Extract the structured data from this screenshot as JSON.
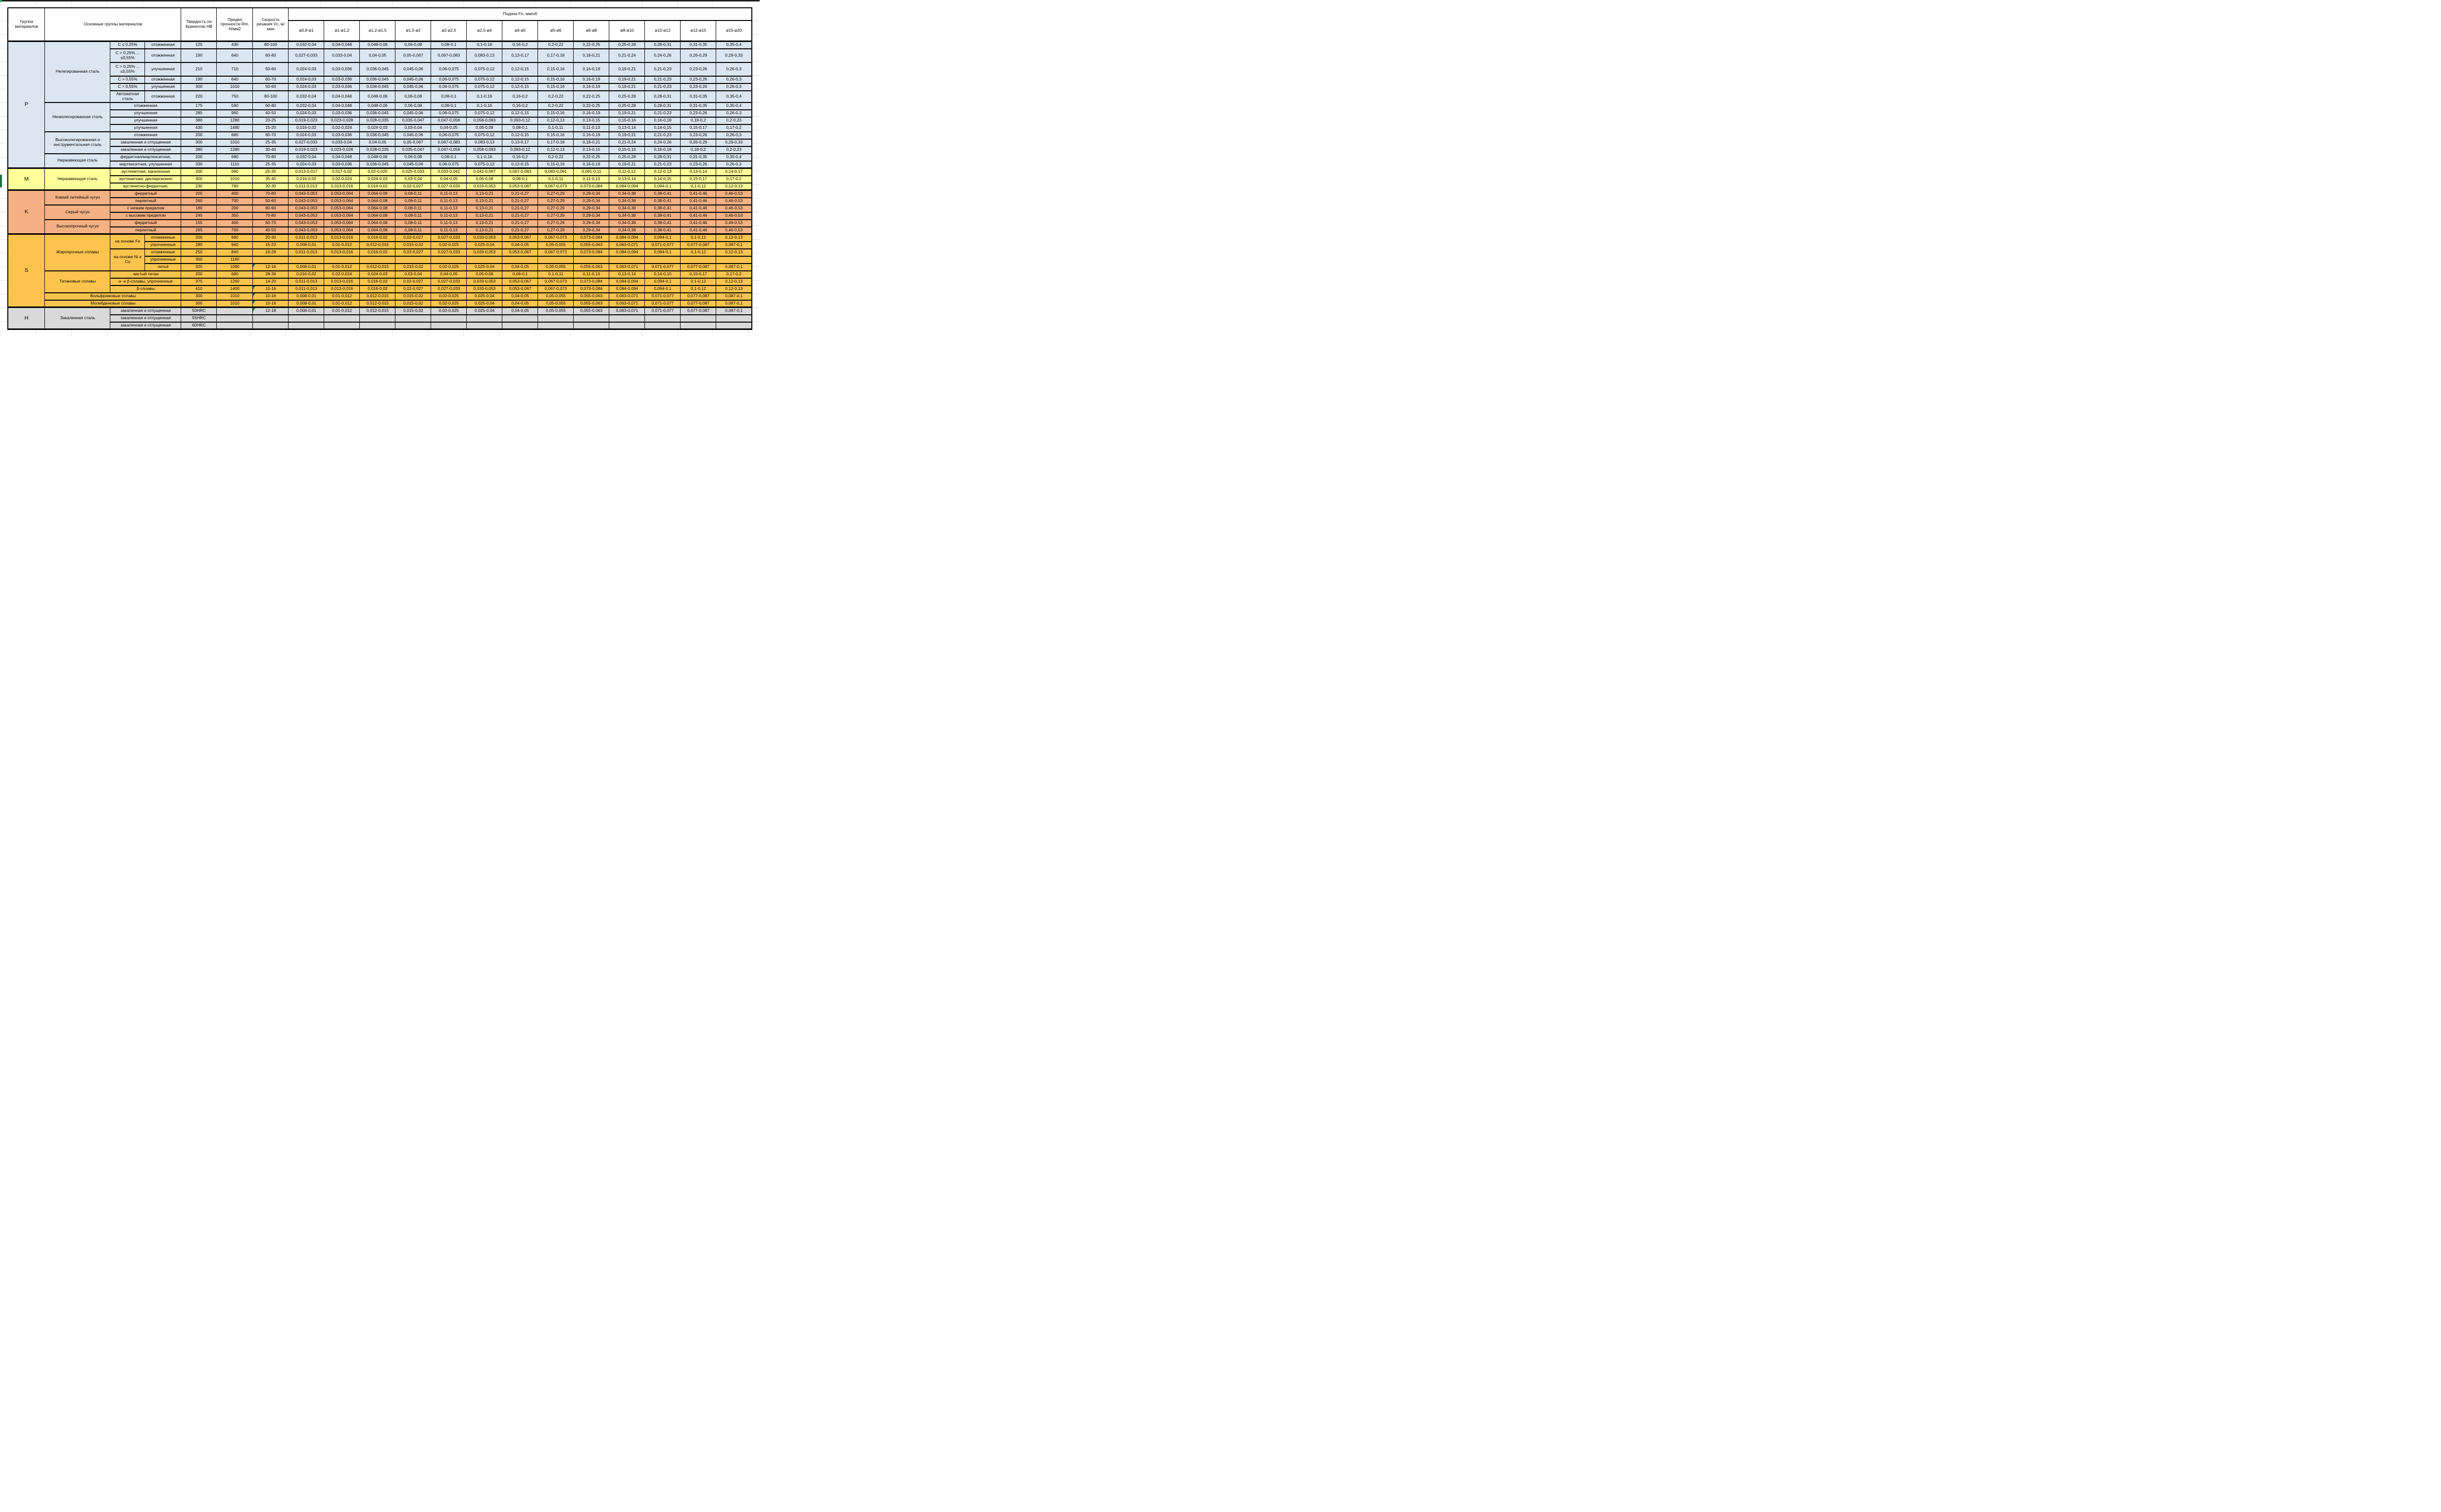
{
  "header": {
    "col_group": "Группа материалов",
    "col_main": "Основные группы материалов",
    "col_hardness": "Твердость по Бринеллю HB",
    "col_strength": "Предел прочности Rm, Н/мм2",
    "col_speed": "Скорость резания Vc, м/мин",
    "feed_title": "Подача Fn, мм/об",
    "feed_columns": [
      "ø0,8-ø1",
      "ø1-ø1,2",
      "ø1,2-ø1,5",
      "ø1,5-ø2",
      "ø2-ø2,5",
      "ø2,5-ø4",
      "ø4-ø5",
      "ø5-ø6",
      "ø6-ø8",
      "ø8-ø10",
      "ø10-ø12",
      "ø12-ø15",
      "ø15-ø20"
    ]
  },
  "feed_patterns": {
    "PA": [
      "0,032-0,04",
      "0,04-0,048",
      "0,048-0,06",
      "0,06-0,08",
      "0,08-0,1",
      "0,1-0,16",
      "0,16-0,2",
      "0,2-0,22",
      "0,22-0,25",
      "0,25-0,28",
      "0,28-0,31",
      "0,31-0,35",
      "0,35-0,4"
    ],
    "PB": [
      "0,027-0,033",
      "0,033-0,04",
      "0,04-0,05",
      "0,05-0,067",
      "0,067-0,083",
      "0,083-0,13",
      "0,13-0,17",
      "0,17-0,18",
      "0,18-0,21",
      "0,21-0,24",
      "0,24-0,26",
      "0,26-0,29",
      "0,29-0,33"
    ],
    "PC": [
      "0,024-0,03",
      "0,03-0,036",
      "0,036-0,045",
      "0,045-0,06",
      "0,06-0,075",
      "0,075-0,12",
      "0,12-0,15",
      "0,15-0,16",
      "0,16-0,19",
      "0,19-0,21",
      "0,21-0,23",
      "0,23-0,26",
      "0,26-0,3"
    ],
    "PD": [
      "0,019-0,023",
      "0,023-0,028",
      "0,028-0,035",
      "0,035-0,047",
      "0,047-0,058",
      "0,058-0,093",
      "0,093-0,12",
      "0,12-0,13",
      "0,13-0,15",
      "0,15-0,16",
      "0,16-0,18",
      "0,18-0,2",
      "0,2-0,23"
    ],
    "PE": [
      "0,016-0,02",
      "0,02-0,024",
      "0,024-0,03",
      "0,03-0,04",
      "0,04-0,05",
      "0,05-0,08",
      "0,08-0,1",
      "0,1-0,11",
      "0,11-0,13",
      "0,13-0,14",
      "0,14-0,15",
      "0,15-0,17",
      "0,17-0,2"
    ],
    "MA": [
      "0,013-0,017",
      "0,017-0,02",
      "0,02-0,025",
      "0,025-0,033",
      "0,033-0,042",
      "0,042-0,067",
      "0,067-0,083",
      "0,083-0,091",
      "0,091-0,11",
      "0,11-0,12",
      "0,12-0,13",
      "0,13-0,14",
      "0,14-0,17"
    ],
    "SA": [
      "0,011-0,013",
      "0,013-0,016",
      "0,016-0,02",
      "0,02-0,027",
      "0,027-0,033",
      "0,033-0,053",
      "0,053-0,067",
      "0,067-0,073",
      "0,073-0,084",
      "0,084-0,094",
      "0,094-0,1",
      "0,1-0,12",
      "0,12-0,13"
    ],
    "SB": [
      "0,008-0,01",
      "0,01-0,012",
      "0,012-0,015",
      "0,015-0,02",
      "0,02-0,025",
      "0,025-0,04",
      "0,04-0,05",
      "0,05-0,055",
      "0,055-0,063",
      "0,063-0,071",
      "0,071-0,077",
      "0,077-0,087",
      "0,087-0,1"
    ],
    "K": [
      "0,043-0,053",
      "0,053-0,064",
      "0,064-0,08",
      "0,08-0,11",
      "0,11-0,13",
      "0,13-0,21",
      "0,21-0,27",
      "0,27-0,29",
      "0,29-0,34",
      "0,34-0,38",
      "0,38-0,41",
      "0,41-0,46",
      "0,46-0,53"
    ]
  },
  "groups": [
    {
      "label": "P",
      "color": "#dce6f1",
      "rows": [
        {
          "main": {
            "t": "Нелегированная сталь",
            "rs": 6
          },
          "sub1": {
            "t": "C ≤ 0,25%"
          },
          "sub2": {
            "t": "отожженная"
          },
          "hb": "125",
          "rm": "430",
          "vc": "80-100",
          "p": "PA",
          "h": 1
        },
        {
          "sub1": {
            "t": "C > 0,25% ... ≤0,55%"
          },
          "sub2": {
            "t": "отожженная"
          },
          "hb": "190",
          "rm": "640",
          "vc": "60-80",
          "p": "PB",
          "h": 2
        },
        {
          "sub1": {
            "t": "C > 0,25% ... ≤0,55%"
          },
          "sub2": {
            "t": "улучшенная"
          },
          "hb": "210",
          "rm": "710",
          "vc": "50-60",
          "p": "PC",
          "h": 2
        },
        {
          "sub1": {
            "t": "C > 0,55%"
          },
          "sub2": {
            "t": "отожженная"
          },
          "hb": "190",
          "rm": "640",
          "vc": "60-70",
          "p": "PC",
          "h": 1
        },
        {
          "sub1": {
            "t": "C > 0,55%"
          },
          "sub2": {
            "t": "улучшенная"
          },
          "hb": "300",
          "rm": "1010",
          "vc": "50-60",
          "p": "PC",
          "h": 1
        },
        {
          "sub1": {
            "t": "Автоматная сталь"
          },
          "sub2": {
            "t": "отожженная"
          },
          "hb": "220",
          "rm": "750",
          "vc": "80-100",
          "p": "PA",
          "h": 1.5
        },
        {
          "main": {
            "t": "Низколегированная сталь",
            "rs": 4
          },
          "wide": {
            "t": "отожженная"
          },
          "hb": "175",
          "rm": "590",
          "vc": "60-80",
          "p": "PA",
          "h": 1
        },
        {
          "wide": {
            "t": "улучшенная"
          },
          "hb": "285",
          "rm": "960",
          "vc": "40-50",
          "p": "PC",
          "h": 1
        },
        {
          "wide": {
            "t": "улучшенная"
          },
          "hb": "380",
          "rm": "1280",
          "vc": "20-25",
          "p": "PD",
          "h": 1
        },
        {
          "wide": {
            "t": "улучшенная"
          },
          "hb": "430",
          "rm": "1480",
          "vc": "15-20",
          "p": "PE",
          "h": 1
        },
        {
          "main": {
            "t": "Высоколегированная и инструментальная сталь",
            "rs": 3
          },
          "wide": {
            "t": "отожженная"
          },
          "hb": "200",
          "rm": "680",
          "vc": "60-70",
          "p": "PC",
          "h": 1
        },
        {
          "wide": {
            "t": "закаленная и отпущенная"
          },
          "hb": "300",
          "rm": "1010",
          "vc": "25-35",
          "p": "PB",
          "h": 1
        },
        {
          "wide": {
            "t": "закаленная и отпущенная"
          },
          "hb": "380",
          "rm": "1280",
          "vc": "30-40",
          "p": "PD",
          "h": 1
        },
        {
          "main": {
            "t": "Нержавеющая сталь",
            "rs": 2
          },
          "wide": {
            "t": "ферритная/мартенситная,"
          },
          "hb": "200",
          "rm": "680",
          "vc": "70-80",
          "p": "PA",
          "h": 1
        },
        {
          "wide": {
            "t": "мартенситная, улучшенная"
          },
          "hb": "330",
          "rm": "1110",
          "vc": "25-35",
          "p": "PC",
          "h": 1
        }
      ]
    },
    {
      "label": "M",
      "color": "#ffff99",
      "rows": [
        {
          "main": {
            "t": "Нержавеющая сталь",
            "rs": 3
          },
          "wide": {
            "t": "аустенитная, закаленная"
          },
          "hb": "200",
          "rm": "680",
          "vc": "25-35",
          "p": "MA",
          "h": 1
        },
        {
          "wide": {
            "t": "аустенитная, дисперсионно"
          },
          "hb": "300",
          "rm": "1010",
          "vc": "35-45",
          "p": "PE",
          "h": 1
        },
        {
          "wide": {
            "t": "аустенитно-ферритная,"
          },
          "hb": "230",
          "rm": "780",
          "vc": "20-30",
          "p": "SA",
          "h": 1
        }
      ]
    },
    {
      "label": "K",
      "color": "#f5b183",
      "rows": [
        {
          "main": {
            "t": "Ковкий литейный чугун",
            "rs": 2
          },
          "wide": {
            "t": "ферритный"
          },
          "hb": "200",
          "rm": "400",
          "vc": "70-80",
          "p": "K",
          "h": 1
        },
        {
          "wide": {
            "t": "перлитный"
          },
          "hb": "260",
          "rm": "700",
          "vc": "50-60",
          "p": "K",
          "h": 1
        },
        {
          "main": {
            "t": "Серый чугун",
            "rs": 2
          },
          "wide": {
            "t": "с низким пределом"
          },
          "hb": "180",
          "rm": "200",
          "vc": "80-90",
          "p": "K",
          "h": 1
        },
        {
          "wide": {
            "t": "с высоким пределом"
          },
          "hb": "245",
          "rm": "350",
          "vc": "70-80",
          "p": "K",
          "h": 1
        },
        {
          "main": {
            "t": "Высокопрочный чугун",
            "rs": 2
          },
          "wide": {
            "t": "ферритный"
          },
          "hb": "155",
          "rm": "400",
          "vc": "60-70",
          "p": "K",
          "h": 1
        },
        {
          "wide": {
            "t": "перлитный"
          },
          "hb": "265",
          "rm": "700",
          "vc": "40-50",
          "p": "K",
          "h": 1
        }
      ]
    },
    {
      "label": "S",
      "color": "#fcc44d",
      "rows": [
        {
          "main": {
            "t": "Жаропрочные сплавы",
            "rs": 5
          },
          "sub1": {
            "t": "на основе Fe",
            "rs": 2
          },
          "sub2": {
            "t": "отожженные"
          },
          "hb": "200",
          "rm": "680",
          "vc": "20-30",
          "p": "SA",
          "h": 1
        },
        {
          "sub2": {
            "t": "упрочненные"
          },
          "hb": "280",
          "rm": "940",
          "vc": "15-22",
          "p": "SB",
          "h": 1
        },
        {
          "sub1": {
            "t": "на основе Ni и Co",
            "rs": 3
          },
          "sub2": {
            "t": "отожженные"
          },
          "hb": "250",
          "rm": "840",
          "vc": "16-28",
          "p": "SA",
          "h": 1
        },
        {
          "sub2": {
            "t": "упрочненные"
          },
          "hb": "350",
          "rm": "1180",
          "vc": "",
          "p": "",
          "h": 1
        },
        {
          "sub2": {
            "t": "литьё"
          },
          "hb": "320",
          "rm": "1080",
          "vc": "12-16",
          "vcf": true,
          "p": "SB",
          "h": 1
        },
        {
          "main": {
            "t": "Титановые сплавы",
            "rs": 3
          },
          "wide": {
            "t": "чистый титан"
          },
          "hb": "200",
          "rm": "680",
          "vc": "28-36",
          "p": "PE",
          "h": 1
        },
        {
          "wide": {
            "t": "α- и β-сплавы, упрочненные"
          },
          "hb": "375",
          "rm": "1260",
          "vc": "14-20",
          "p": "SA",
          "h": 1
        },
        {
          "wide": {
            "t": "β-сплавы"
          },
          "hb": "410",
          "rm": "1400",
          "vc": "10-16",
          "vcf": true,
          "p": "SA",
          "h": 1
        },
        {
          "full": {
            "t": "Вольфрамовые сплавы"
          },
          "hb": "300",
          "rm": "1010",
          "vc": "10-16",
          "vcf": true,
          "p": "SB",
          "h": 1
        },
        {
          "full": {
            "t": "Молибденовые сплавы"
          },
          "hb": "300",
          "rm": "1010",
          "vc": "10-16",
          "vcf": true,
          "p": "SB",
          "h": 1
        }
      ]
    },
    {
      "label": "H",
      "color": "#d9d9d9",
      "rows": [
        {
          "main": {
            "t": "Закаленная сталь",
            "rs": 3
          },
          "wide": {
            "t": "закаленная и отпущенная"
          },
          "hb": "50HRC",
          "rm": "",
          "vc": "12-18",
          "vcf": true,
          "p": "SB",
          "h": 1
        },
        {
          "wide": {
            "t": "закаленная и отпущенная"
          },
          "hb": "55HRC",
          "rm": "",
          "vc": "",
          "p": "",
          "h": 1
        },
        {
          "wide": {
            "t": "закаленная и отпущенная"
          },
          "hb": "60HRC",
          "rm": "",
          "vc": "",
          "p": "",
          "h": 1
        }
      ]
    }
  ],
  "colors": {
    "group_P": "#dce6f1",
    "group_M": "#ffff99",
    "group_K": "#f5b183",
    "group_S": "#fcc44d",
    "group_H": "#d9d9d9",
    "error_triangle": "#217346",
    "corner_marker": "#21a366",
    "row_marker": "#1d7044",
    "border": "#000000"
  }
}
